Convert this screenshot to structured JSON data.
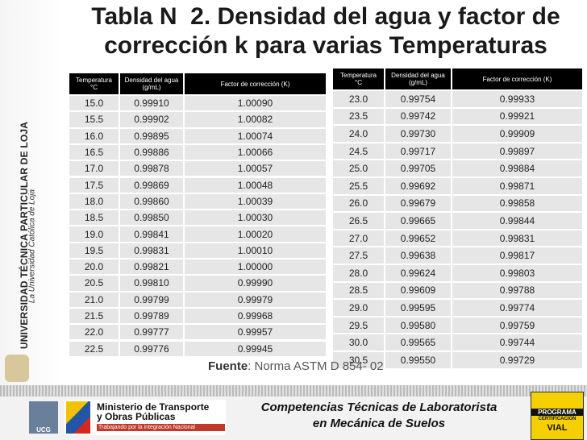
{
  "title": [
    "Tabla N  2. Densidad del agua y factor de",
    "corrección k para varias Temperaturas"
  ],
  "sidebar": {
    "university": "UNIVERSIDAD TÉCNICA PARTICULAR DE LOJA",
    "motto": "La Universidad Católica de Loja"
  },
  "left_table": {
    "header": [
      "Temperatura °C",
      "Densidad del agua (g/mL)",
      "Factor de corrección (K)"
    ],
    "rows": [
      [
        "15.0",
        "0.99910",
        "1.00090"
      ],
      [
        "15.5",
        "0.99902",
        "1.00082"
      ],
      [
        "16.0",
        "0.99895",
        "1.00074"
      ],
      [
        "16.5",
        "0.99886",
        "1.00066"
      ],
      [
        "17.0",
        "0.99878",
        "1.00057"
      ],
      [
        "17.5",
        "0.99869",
        "1.00048"
      ],
      [
        "18.0",
        "0.99860",
        "1.00039"
      ],
      [
        "18.5",
        "0.99850",
        "1.00030"
      ],
      [
        "19.0",
        "0.99841",
        "1.00020"
      ],
      [
        "19.5",
        "0.99831",
        "1.00010"
      ],
      [
        "20.0",
        "0.99821",
        "1.00000"
      ],
      [
        "20.5",
        "0.99810",
        "0.99990"
      ],
      [
        "21.0",
        "0.99799",
        "0.99979"
      ],
      [
        "21.5",
        "0.99789",
        "0.99968"
      ],
      [
        "22.0",
        "0.99777",
        "0.99957"
      ],
      [
        "22.5",
        "0.99776",
        "0.99945"
      ]
    ]
  },
  "right_table": {
    "header": [
      "Temperatura °C",
      "Densidad del agua (g/mL)",
      "Factor de corrección (K)"
    ],
    "rows": [
      [
        "23.0",
        "0.99754",
        "0.99933"
      ],
      [
        "23.5",
        "0.99742",
        "0.99921"
      ],
      [
        "24.0",
        "0.99730",
        "0.99909"
      ],
      [
        "24.5",
        "0.99717",
        "0.99897"
      ],
      [
        "25.0",
        "0.99705",
        "0.99884"
      ],
      [
        "25.5",
        "0.99692",
        "0.99871"
      ],
      [
        "26.0",
        "0.99679",
        "0.99858"
      ],
      [
        "26.5",
        "0.99665",
        "0.99844"
      ],
      [
        "27.0",
        "0.99652",
        "0.99831"
      ],
      [
        "27.5",
        "0.99638",
        "0.99817"
      ],
      [
        "28.0",
        "0.99624",
        "0.99803"
      ],
      [
        "28.5",
        "0.99609",
        "0.99788"
      ],
      [
        "29.0",
        "0.99595",
        "0.99774"
      ],
      [
        "29.5",
        "0.99580",
        "0.99759"
      ],
      [
        "30.0",
        "0.99565",
        "0.99744"
      ],
      [
        "30.5",
        "0.99550",
        "0.99729"
      ]
    ]
  },
  "source": {
    "label": "Fuente",
    "text": ": Norma ASTM D 854- 02"
  },
  "footer": {
    "line1": "Competencias Técnicas de Laboratorista",
    "line2": "en Mecánica de Suelos",
    "ministry": [
      "Ministerio de Transporte",
      "y Obras Públicas"
    ],
    "ministry_tagline": "Trabajando por la integración Nacional",
    "ucg": "UCG",
    "program": [
      "PROGRAMA",
      "CERTIFICACION",
      "VIAL"
    ]
  }
}
